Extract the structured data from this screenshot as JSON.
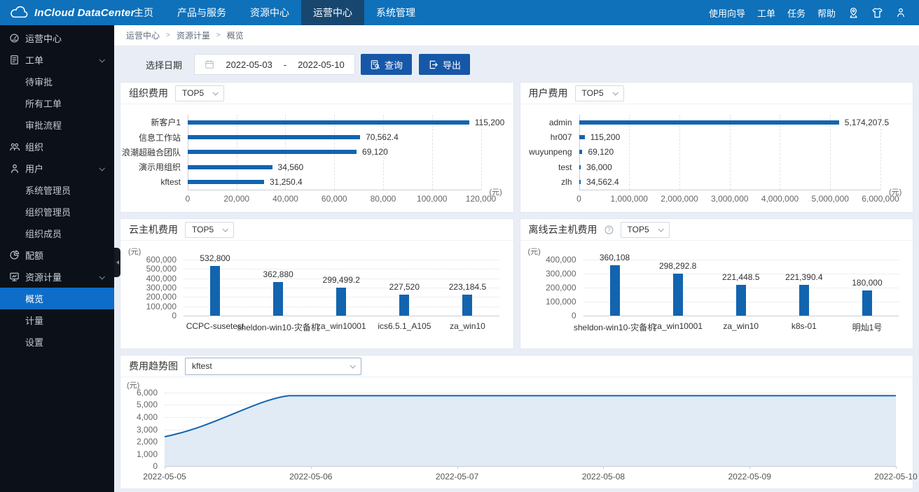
{
  "brand": {
    "name": "InCloud DataCenter"
  },
  "topnav": {
    "items": [
      {
        "key": "home",
        "label": "主页",
        "active": false
      },
      {
        "key": "products",
        "label": "产品与服务",
        "active": false
      },
      {
        "key": "resource-center",
        "label": "资源中心",
        "active": false
      },
      {
        "key": "operations-center",
        "label": "运营中心",
        "active": true
      },
      {
        "key": "system-management",
        "label": "系统管理",
        "active": false
      }
    ],
    "right_links": [
      {
        "key": "guide",
        "label": "使用向导"
      },
      {
        "key": "tickets",
        "label": "工单"
      },
      {
        "key": "tasks",
        "label": "任务"
      },
      {
        "key": "help",
        "label": "帮助"
      }
    ],
    "right_icons": [
      {
        "key": "location"
      },
      {
        "key": "theme"
      },
      {
        "key": "person"
      }
    ]
  },
  "sidebar": {
    "items": [
      {
        "key": "operations-center",
        "label": "运营中心",
        "icon": "gauge",
        "depth": 0,
        "expanded": false,
        "active": false
      },
      {
        "key": "tickets",
        "label": "工单",
        "icon": "ticket",
        "depth": 0,
        "expanded": true,
        "active": false
      },
      {
        "key": "pending-approval",
        "label": "待审批",
        "depth": 1,
        "active": false
      },
      {
        "key": "all-tickets",
        "label": "所有工单",
        "depth": 1,
        "active": false
      },
      {
        "key": "approval-flow",
        "label": "审批流程",
        "depth": 1,
        "active": false
      },
      {
        "key": "organization",
        "label": "组织",
        "icon": "org",
        "depth": 0,
        "expanded": false,
        "active": false
      },
      {
        "key": "users",
        "label": "用户",
        "icon": "person",
        "depth": 0,
        "expanded": true,
        "active": false
      },
      {
        "key": "system-admin",
        "label": "系统管理员",
        "depth": 1,
        "active": false
      },
      {
        "key": "org-admin",
        "label": "组织管理员",
        "depth": 1,
        "active": false
      },
      {
        "key": "org-member",
        "label": "组织成员",
        "depth": 1,
        "active": false
      },
      {
        "key": "quota",
        "label": "配额",
        "icon": "pie",
        "depth": 0,
        "expanded": false,
        "active": false
      },
      {
        "key": "resource-metering",
        "label": "资源计量",
        "icon": "meter",
        "depth": 0,
        "expanded": true,
        "active": false
      },
      {
        "key": "overview",
        "label": "概览",
        "depth": 1,
        "active": true
      },
      {
        "key": "metering",
        "label": "计量",
        "depth": 1,
        "active": false
      },
      {
        "key": "settings",
        "label": "设置",
        "depth": 1,
        "active": false
      }
    ]
  },
  "breadcrumb": [
    "运营中心",
    "资源计量",
    "概览"
  ],
  "filter": {
    "label": "选择日期",
    "date_start": "2022-05-03",
    "separator": "-",
    "date_end": "2022-05-10",
    "query_label": "查询",
    "export_label": "导出"
  },
  "colors": {
    "navbar": "#0e71ba",
    "navbar_active": "#17476f",
    "sidebar": "#0c1018",
    "sidebar_active": "#0e6dc8",
    "button": "#1757a8",
    "bar": "#1264af",
    "trend_line": "#1264af",
    "trend_fill": "#e0ebf6"
  },
  "chart_data": [
    {
      "key": "org-cost",
      "type": "bar",
      "orientation": "horizontal",
      "title": "组织费用",
      "filter_value": "TOP5",
      "unit": "(元)",
      "categories": [
        "新客户1",
        "信息工作站",
        "浪潮超融合团队",
        "演示用组织",
        "kftest"
      ],
      "values": [
        115200,
        70562.4,
        69120,
        34560,
        31250.4
      ],
      "value_labels": [
        "115,200",
        "70,562.4",
        "69,120",
        "34,560",
        "31,250.4"
      ],
      "xlim": [
        0,
        120000
      ],
      "x_ticks": [
        "0",
        "20,000",
        "40,000",
        "60,000",
        "80,000",
        "100,000",
        "120,000"
      ],
      "grid": "dashed-vertical"
    },
    {
      "key": "user-cost",
      "type": "bar",
      "orientation": "horizontal",
      "title": "用户费用",
      "filter_value": "TOP5",
      "unit": "(元)",
      "categories": [
        "admin",
        "hr007",
        "wuyunpeng",
        "test",
        "zlh"
      ],
      "values": [
        5174207.5,
        115200,
        69120,
        36000,
        34562.4
      ],
      "value_labels": [
        "5,174,207.5",
        "115,200",
        "69,120",
        "36,000",
        "34,562.4"
      ],
      "xlim": [
        0,
        6000000
      ],
      "x_ticks": [
        "0",
        "1,000,000",
        "2,000,000",
        "3,000,000",
        "4,000,000",
        "5,000,000",
        "6,000,000"
      ],
      "grid": "dashed-vertical"
    },
    {
      "key": "vm-cost",
      "type": "bar",
      "orientation": "vertical",
      "title": "云主机费用",
      "filter_value": "TOP5",
      "unit": "(元)",
      "categories": [
        "CCPC-susetest",
        "sheldon-win10-灾备机",
        "za_win10001",
        "ics6.5.1_A105",
        "za_win10"
      ],
      "values": [
        532800,
        362880,
        299499.2,
        227520,
        223184.5
      ],
      "value_labels": [
        "532,800",
        "362,880",
        "299,499.2",
        "227,520",
        "223,184.5"
      ],
      "ylim": [
        0,
        600000
      ],
      "y_ticks": [
        "600,000",
        "500,000",
        "400,000",
        "300,000",
        "200,000",
        "100,000",
        "0"
      ],
      "grid": "dotted-horizontal"
    },
    {
      "key": "offline-vm-cost",
      "type": "bar",
      "orientation": "vertical",
      "title": "离线云主机费用",
      "has_help": true,
      "filter_value": "TOP5",
      "unit": "(元)",
      "categories": [
        "sheldon-win10-灾备机",
        "za_win10001",
        "za_win10",
        "k8s-01",
        "明灿1号"
      ],
      "values": [
        360108,
        298292.8,
        221448.5,
        221390.4,
        180000
      ],
      "value_labels": [
        "360,108",
        "298,292.8",
        "221,448.5",
        "221,390.4",
        "180,000"
      ],
      "ylim": [
        0,
        400000
      ],
      "y_ticks": [
        "400,000",
        "300,000",
        "200,000",
        "100,000",
        "0"
      ],
      "grid": "dotted-horizontal"
    },
    {
      "key": "cost-trend",
      "type": "area",
      "title": "费用趋势图",
      "select_value": "kftest",
      "unit": "(元)",
      "x": [
        "2022-05-05",
        "2022-05-06",
        "2022-05-07",
        "2022-05-08",
        "2022-05-09",
        "2022-05-10"
      ],
      "values": [
        2400,
        5750,
        5750,
        5750,
        5750,
        5750
      ],
      "ylim": [
        0,
        6000
      ],
      "y_ticks": [
        "6,000",
        "5,000",
        "4,000",
        "3,000",
        "2,000",
        "1,000",
        "0"
      ],
      "smooth": true,
      "grid": "dotted-horizontal"
    }
  ]
}
